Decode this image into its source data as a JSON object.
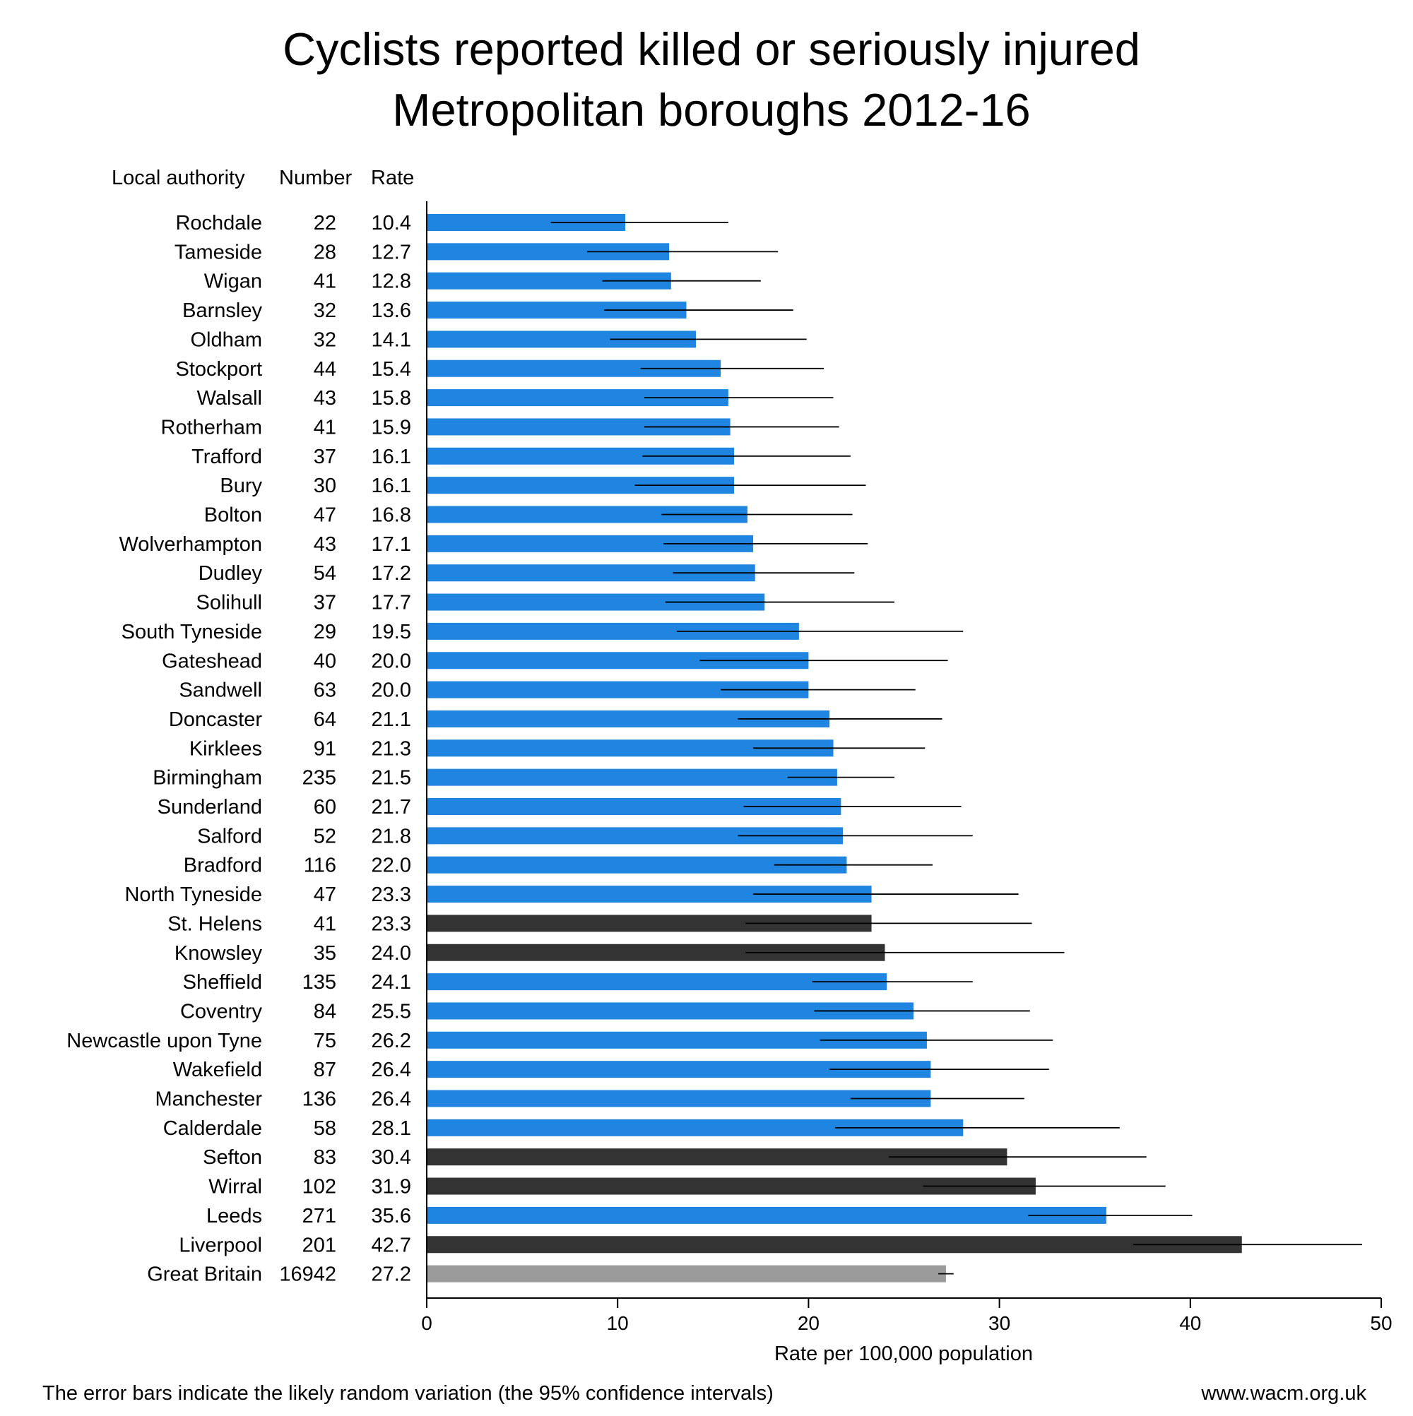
{
  "chart_data": {
    "type": "bar",
    "orientation": "horizontal",
    "title_lines": [
      "Cyclists reported killed or seriously injured",
      "Metropolitan boroughs 2012-16"
    ],
    "column_headers": {
      "authority": "Local authority",
      "number": "Number",
      "rate": "Rate"
    },
    "xlabel": "Rate per 100,000 population",
    "xlim": [
      0,
      50
    ],
    "xticks": [
      "0",
      "10",
      "20",
      "30",
      "40",
      "50"
    ],
    "grid": false,
    "colors": {
      "default": "#1f85e0",
      "highlight": "#333333",
      "reference": "#9b9b9b",
      "error_bar": "#000000"
    },
    "rows": [
      {
        "name": "Rochdale",
        "number": "22",
        "rate": "10.4",
        "value": 10.4,
        "ci": [
          6.5,
          15.8
        ],
        "kind": "default"
      },
      {
        "name": "Tameside",
        "number": "28",
        "rate": "12.7",
        "value": 12.7,
        "ci": [
          8.4,
          18.4
        ],
        "kind": "default"
      },
      {
        "name": "Wigan",
        "number": "41",
        "rate": "12.8",
        "value": 12.8,
        "ci": [
          9.2,
          17.5
        ],
        "kind": "default"
      },
      {
        "name": "Barnsley",
        "number": "32",
        "rate": "13.6",
        "value": 13.6,
        "ci": [
          9.3,
          19.2
        ],
        "kind": "default"
      },
      {
        "name": "Oldham",
        "number": "32",
        "rate": "14.1",
        "value": 14.1,
        "ci": [
          9.6,
          19.9
        ],
        "kind": "default"
      },
      {
        "name": "Stockport",
        "number": "44",
        "rate": "15.4",
        "value": 15.4,
        "ci": [
          11.2,
          20.8
        ],
        "kind": "default"
      },
      {
        "name": "Walsall",
        "number": "43",
        "rate": "15.8",
        "value": 15.8,
        "ci": [
          11.4,
          21.3
        ],
        "kind": "default"
      },
      {
        "name": "Rotherham",
        "number": "41",
        "rate": "15.9",
        "value": 15.9,
        "ci": [
          11.4,
          21.6
        ],
        "kind": "default"
      },
      {
        "name": "Trafford",
        "number": "37",
        "rate": "16.1",
        "value": 16.1,
        "ci": [
          11.3,
          22.2
        ],
        "kind": "default"
      },
      {
        "name": "Bury",
        "number": "30",
        "rate": "16.1",
        "value": 16.1,
        "ci": [
          10.9,
          23.0
        ],
        "kind": "default"
      },
      {
        "name": "Bolton",
        "number": "47",
        "rate": "16.8",
        "value": 16.8,
        "ci": [
          12.3,
          22.3
        ],
        "kind": "default"
      },
      {
        "name": "Wolverhampton",
        "number": "43",
        "rate": "17.1",
        "value": 17.1,
        "ci": [
          12.4,
          23.1
        ],
        "kind": "default"
      },
      {
        "name": "Dudley",
        "number": "54",
        "rate": "17.2",
        "value": 17.2,
        "ci": [
          12.9,
          22.4
        ],
        "kind": "default"
      },
      {
        "name": "Solihull",
        "number": "37",
        "rate": "17.7",
        "value": 17.7,
        "ci": [
          12.5,
          24.5
        ],
        "kind": "default"
      },
      {
        "name": "South Tyneside",
        "number": "29",
        "rate": "19.5",
        "value": 19.5,
        "ci": [
          13.1,
          28.1
        ],
        "kind": "default"
      },
      {
        "name": "Gateshead",
        "number": "40",
        "rate": "20.0",
        "value": 20.0,
        "ci": [
          14.3,
          27.3
        ],
        "kind": "default"
      },
      {
        "name": "Sandwell",
        "number": "63",
        "rate": "20.0",
        "value": 20.0,
        "ci": [
          15.4,
          25.6
        ],
        "kind": "default"
      },
      {
        "name": "Doncaster",
        "number": "64",
        "rate": "21.1",
        "value": 21.1,
        "ci": [
          16.3,
          27.0
        ],
        "kind": "default"
      },
      {
        "name": "Kirklees",
        "number": "91",
        "rate": "21.3",
        "value": 21.3,
        "ci": [
          17.1,
          26.1
        ],
        "kind": "default"
      },
      {
        "name": "Birmingham",
        "number": "235",
        "rate": "21.5",
        "value": 21.5,
        "ci": [
          18.9,
          24.5
        ],
        "kind": "default"
      },
      {
        "name": "Sunderland",
        "number": "60",
        "rate": "21.7",
        "value": 21.7,
        "ci": [
          16.6,
          28.0
        ],
        "kind": "default"
      },
      {
        "name": "Salford",
        "number": "52",
        "rate": "21.8",
        "value": 21.8,
        "ci": [
          16.3,
          28.6
        ],
        "kind": "default"
      },
      {
        "name": "Bradford",
        "number": "116",
        "rate": "22.0",
        "value": 22.0,
        "ci": [
          18.2,
          26.5
        ],
        "kind": "default"
      },
      {
        "name": "North Tyneside",
        "number": "47",
        "rate": "23.3",
        "value": 23.3,
        "ci": [
          17.1,
          31.0
        ],
        "kind": "default"
      },
      {
        "name": "St. Helens",
        "number": "41",
        "rate": "23.3",
        "value": 23.3,
        "ci": [
          16.7,
          31.7
        ],
        "kind": "highlight"
      },
      {
        "name": "Knowsley",
        "number": "35",
        "rate": "24.0",
        "value": 24.0,
        "ci": [
          16.7,
          33.4
        ],
        "kind": "highlight"
      },
      {
        "name": "Sheffield",
        "number": "135",
        "rate": "24.1",
        "value": 24.1,
        "ci": [
          20.2,
          28.6
        ],
        "kind": "default"
      },
      {
        "name": "Coventry",
        "number": "84",
        "rate": "25.5",
        "value": 25.5,
        "ci": [
          20.3,
          31.6
        ],
        "kind": "default"
      },
      {
        "name": "Newcastle upon Tyne",
        "number": "75",
        "rate": "26.2",
        "value": 26.2,
        "ci": [
          20.6,
          32.8
        ],
        "kind": "default"
      },
      {
        "name": "Wakefield",
        "number": "87",
        "rate": "26.4",
        "value": 26.4,
        "ci": [
          21.1,
          32.6
        ],
        "kind": "default"
      },
      {
        "name": "Manchester",
        "number": "136",
        "rate": "26.4",
        "value": 26.4,
        "ci": [
          22.2,
          31.3
        ],
        "kind": "default"
      },
      {
        "name": "Calderdale",
        "number": "58",
        "rate": "28.1",
        "value": 28.1,
        "ci": [
          21.4,
          36.3
        ],
        "kind": "default"
      },
      {
        "name": "Sefton",
        "number": "83",
        "rate": "30.4",
        "value": 30.4,
        "ci": [
          24.2,
          37.7
        ],
        "kind": "highlight"
      },
      {
        "name": "Wirral",
        "number": "102",
        "rate": "31.9",
        "value": 31.9,
        "ci": [
          26.0,
          38.7
        ],
        "kind": "highlight"
      },
      {
        "name": "Leeds",
        "number": "271",
        "rate": "35.6",
        "value": 35.6,
        "ci": [
          31.5,
          40.1
        ],
        "kind": "default"
      },
      {
        "name": "Liverpool",
        "number": "201",
        "rate": "42.7",
        "value": 42.7,
        "ci": [
          37.0,
          49.0
        ],
        "kind": "highlight"
      },
      {
        "name": "Great Britain",
        "number": "16942",
        "rate": "27.2",
        "value": 27.2,
        "ci": [
          26.8,
          27.6
        ],
        "kind": "reference"
      }
    ],
    "footnote": "The error bars indicate the likely random variation (the 95% confidence intervals)",
    "source": "www.wacm.org.uk"
  }
}
